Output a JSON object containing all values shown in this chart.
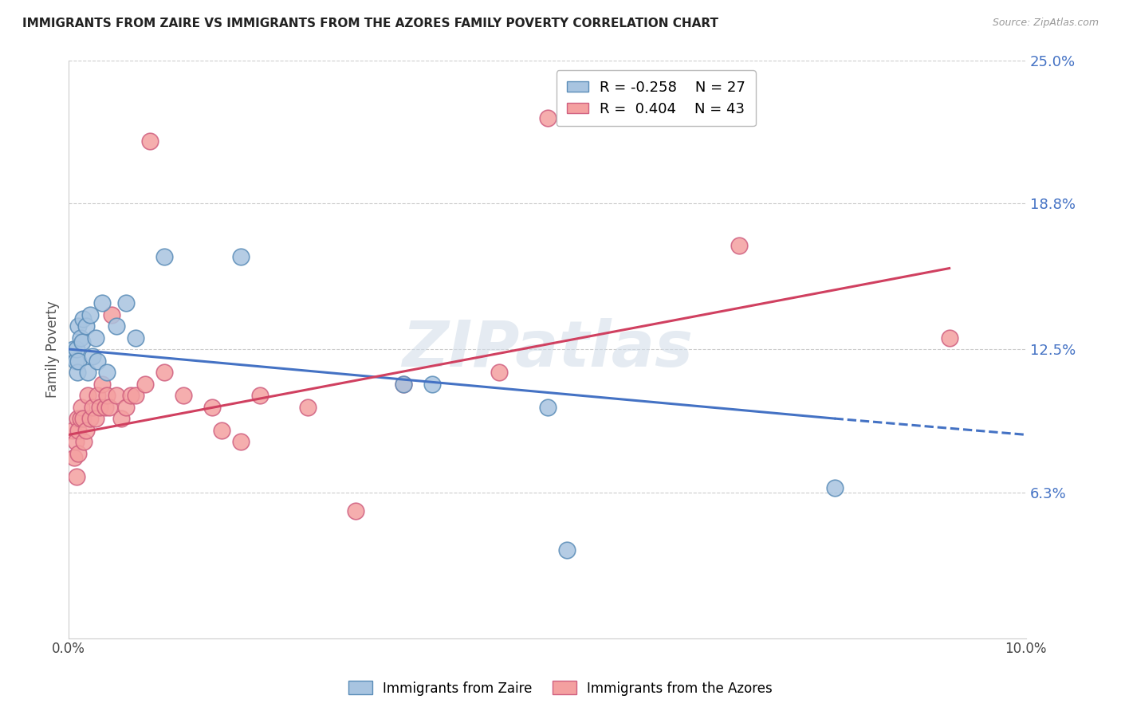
{
  "title": "IMMIGRANTS FROM ZAIRE VS IMMIGRANTS FROM THE AZORES FAMILY POVERTY CORRELATION CHART",
  "source": "Source: ZipAtlas.com",
  "ylabel": "Family Poverty",
  "xlim": [
    0.0,
    10.0
  ],
  "ylim": [
    0.0,
    25.0
  ],
  "ytick_values": [
    6.3,
    12.5,
    18.8,
    25.0
  ],
  "yticklabels_right": [
    "6.3%",
    "12.5%",
    "18.8%",
    "25.0%"
  ],
  "watermark": "ZIPatlas",
  "legend_blue_r": "R = -0.258",
  "legend_blue_n": "N = 27",
  "legend_pink_r": "R =  0.404",
  "legend_pink_n": "N = 43",
  "blue_scatter_color": "#A8C4E0",
  "blue_edge_color": "#5B8DB8",
  "pink_scatter_color": "#F4A0A0",
  "pink_edge_color": "#D06080",
  "blue_line_color": "#4472C4",
  "pink_line_color": "#D04060",
  "zaire_x": [
    0.05,
    0.07,
    0.08,
    0.09,
    0.1,
    0.1,
    0.12,
    0.14,
    0.15,
    0.18,
    0.2,
    0.22,
    0.25,
    0.28,
    0.3,
    0.35,
    0.4,
    0.5,
    0.6,
    0.7,
    1.0,
    1.8,
    3.5,
    3.8,
    5.0,
    5.2,
    8.0
  ],
  "zaire_y": [
    12.5,
    12.0,
    12.5,
    11.5,
    13.5,
    12.0,
    13.0,
    12.8,
    13.8,
    13.5,
    11.5,
    14.0,
    12.2,
    13.0,
    12.0,
    14.5,
    11.5,
    13.5,
    14.5,
    13.0,
    16.5,
    16.5,
    11.0,
    11.0,
    10.0,
    3.8,
    6.5
  ],
  "azores_x": [
    0.04,
    0.06,
    0.07,
    0.08,
    0.09,
    0.1,
    0.1,
    0.12,
    0.13,
    0.15,
    0.16,
    0.18,
    0.2,
    0.22,
    0.25,
    0.28,
    0.3,
    0.32,
    0.35,
    0.38,
    0.4,
    0.42,
    0.45,
    0.5,
    0.55,
    0.6,
    0.65,
    0.7,
    0.8,
    0.85,
    1.0,
    1.2,
    1.5,
    1.6,
    1.8,
    2.0,
    2.5,
    3.0,
    3.5,
    4.5,
    5.0,
    7.0,
    9.2
  ],
  "azores_y": [
    9.0,
    7.8,
    8.5,
    7.0,
    9.5,
    8.0,
    9.0,
    9.5,
    10.0,
    9.5,
    8.5,
    9.0,
    10.5,
    9.5,
    10.0,
    9.5,
    10.5,
    10.0,
    11.0,
    10.0,
    10.5,
    10.0,
    14.0,
    10.5,
    9.5,
    10.0,
    10.5,
    10.5,
    11.0,
    21.5,
    11.5,
    10.5,
    10.0,
    9.0,
    8.5,
    10.5,
    10.0,
    5.5,
    11.0,
    11.5,
    22.5,
    17.0,
    13.0
  ],
  "blue_trend_x0": 0.0,
  "blue_trend_y0": 12.5,
  "blue_trend_x1": 8.0,
  "blue_trend_y1": 9.5,
  "blue_dash_x1": 10.0,
  "blue_dash_y1": 8.8,
  "pink_trend_x0": 0.0,
  "pink_trend_y0": 8.8,
  "pink_trend_x1": 9.2,
  "pink_trend_y1": 16.0
}
